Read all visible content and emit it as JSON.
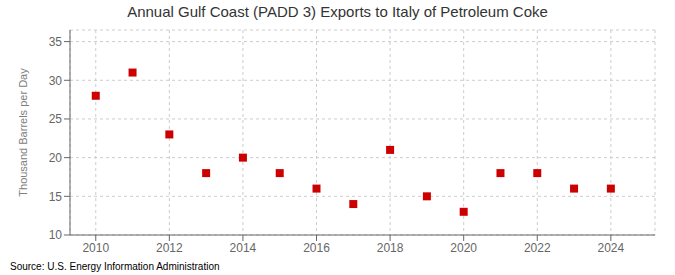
{
  "chart_data": {
    "type": "scatter",
    "title": "Annual Gulf Coast (PADD 3) Exports to Italy of Petroleum Coke",
    "y_label": "Thousand Barrels per Day",
    "annotation": "Source: U.S. Energy Information Administration",
    "x": [
      2010,
      2011,
      2012,
      2013,
      2014,
      2015,
      2016,
      2017,
      2018,
      2019,
      2020,
      2021,
      2022,
      2023,
      2024
    ],
    "values": [
      28,
      31,
      23,
      18,
      20,
      18,
      16,
      14,
      21,
      15,
      13,
      18,
      18,
      16,
      16
    ],
    "color": "#cc0000",
    "marker": "square",
    "xlim": [
      2009.3,
      2025.2
    ],
    "ylim": [
      10,
      36.5
    ],
    "xticks": [
      2010,
      2012,
      2014,
      2016,
      2018,
      2020,
      2022,
      2024
    ],
    "yticks": [
      10,
      15,
      20,
      25,
      30,
      35
    ],
    "grid": true
  }
}
